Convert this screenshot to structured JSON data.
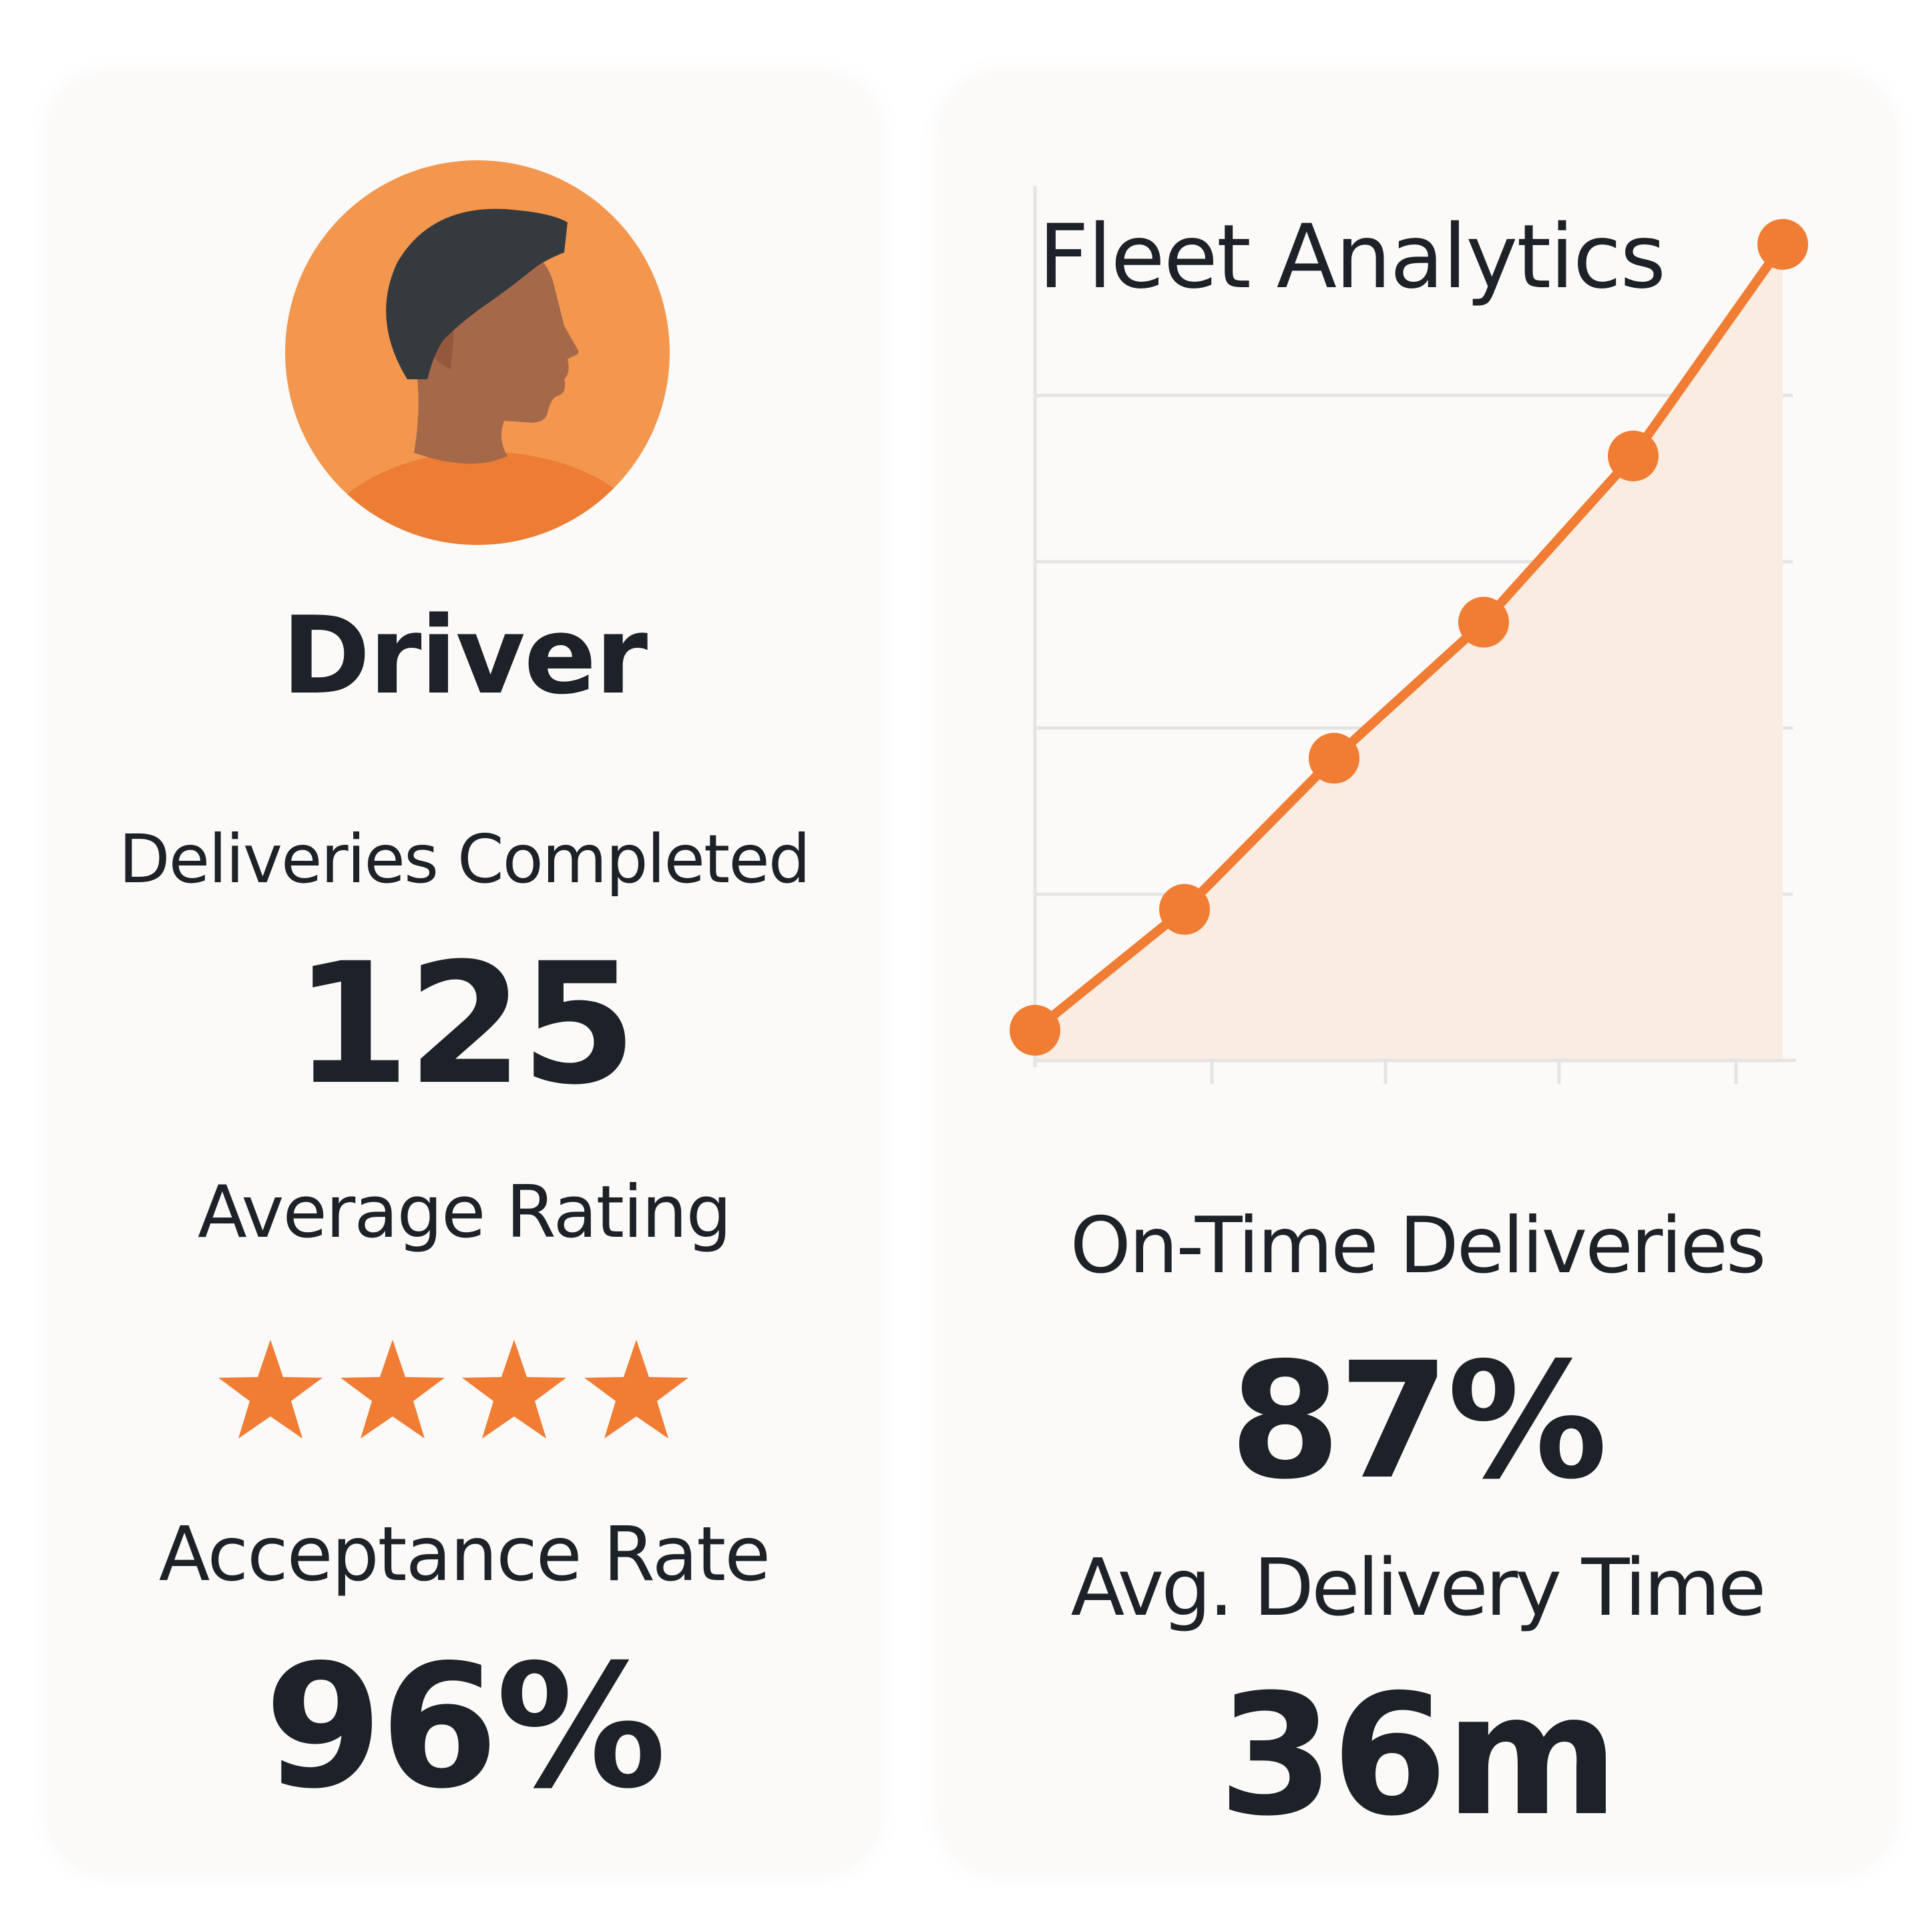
{
  "driver_card": {
    "name": "Driver",
    "deliveries_label": "Deliveries Completed",
    "deliveries_value": "125",
    "rating_label": "Average Rating",
    "rating_stars": 4,
    "acceptance_label": "Acceptance Rate",
    "acceptance_value": "96%",
    "avatar_icon": "driver-avatar-icon",
    "star_icon": "star-icon"
  },
  "analytics_card": {
    "title": "Fleet Analytics",
    "ontime_label": "On-Time Deliveries",
    "ontime_value": "87%",
    "avg_time_label": "Avg. Delivery Time",
    "avg_time_value": "36m"
  },
  "colors": {
    "accent": "#f07d33",
    "accent_light": "#f3974f",
    "area_fill": "#fbece1",
    "grid": "#e4e4e4",
    "text": "#1c2227",
    "skin": "#a5694a",
    "hair": "#353a3e",
    "card": "#fbfaf8"
  },
  "chart_data": {
    "type": "line",
    "title": "",
    "xlabel": "",
    "ylabel": "",
    "x": [
      1,
      2,
      3,
      4,
      5,
      6
    ],
    "series": [
      {
        "values": [
          0.2,
          1.0,
          2.0,
          2.9,
          4.0,
          5.4
        ]
      }
    ],
    "ylim": [
      0,
      5.7
    ],
    "grid": true,
    "area_fill": true,
    "markers": true
  }
}
